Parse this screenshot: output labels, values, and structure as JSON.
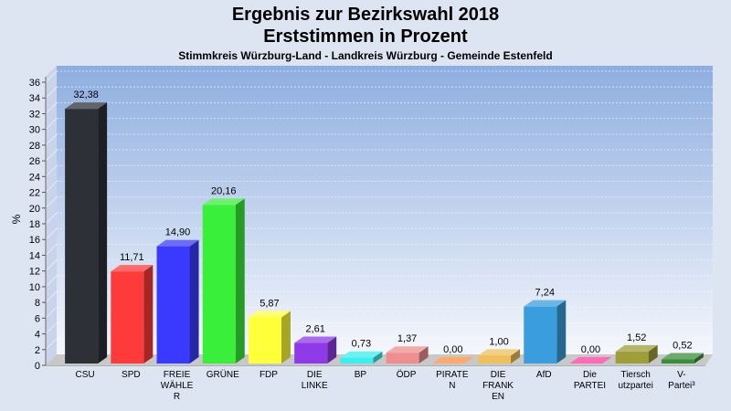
{
  "chart_data": {
    "type": "bar",
    "title": "Ergebnis zur Bezirkswahl 2018",
    "subtitle": "Erststimmen in Prozent",
    "subsubtitle": "Stimmkreis Würzburg-Land - Landkreis Würzburg - Gemeinde Estenfeld",
    "ylabel": "%",
    "xlabel": "",
    "ylim": [
      0,
      36
    ],
    "ytick_step": 2,
    "grid": true,
    "categories": [
      [
        "CSU"
      ],
      [
        "SPD"
      ],
      [
        "FREIE",
        "WÄHLE",
        "R"
      ],
      [
        "GRÜNE"
      ],
      [
        "FDP"
      ],
      [
        "DIE",
        "LINKE"
      ],
      [
        "BP"
      ],
      [
        "ÖDP"
      ],
      [
        "PIRATE",
        "N"
      ],
      [
        "DIE",
        "FRANK",
        "EN"
      ],
      [
        "AfD"
      ],
      [
        "Die",
        "PARTEI"
      ],
      [
        "Tiersch",
        "utzpartei"
      ],
      [
        "V-",
        "Partei³"
      ]
    ],
    "values": [
      32.38,
      11.71,
      14.9,
      20.16,
      5.87,
      2.61,
      0.73,
      1.37,
      0.0,
      1.0,
      7.24,
      0.0,
      1.52,
      0.52
    ],
    "value_labels": [
      "32,38",
      "11,71",
      "14,90",
      "20,16",
      "5,87",
      "2,61",
      "0,73",
      "1,37",
      "0,00",
      "1,00",
      "7,24",
      "0,00",
      "1,52",
      "0,52"
    ],
    "colors": [
      "#2e3038",
      "#ff3a3a",
      "#3a3aff",
      "#3aef3a",
      "#ffff3a",
      "#8e3ae8",
      "#3aefef",
      "#ef8e8e",
      "#ff8e3a",
      "#efbf5a",
      "#3a9ede",
      "#ff3a9e",
      "#9e9e3a",
      "#3a8e3a"
    ]
  }
}
